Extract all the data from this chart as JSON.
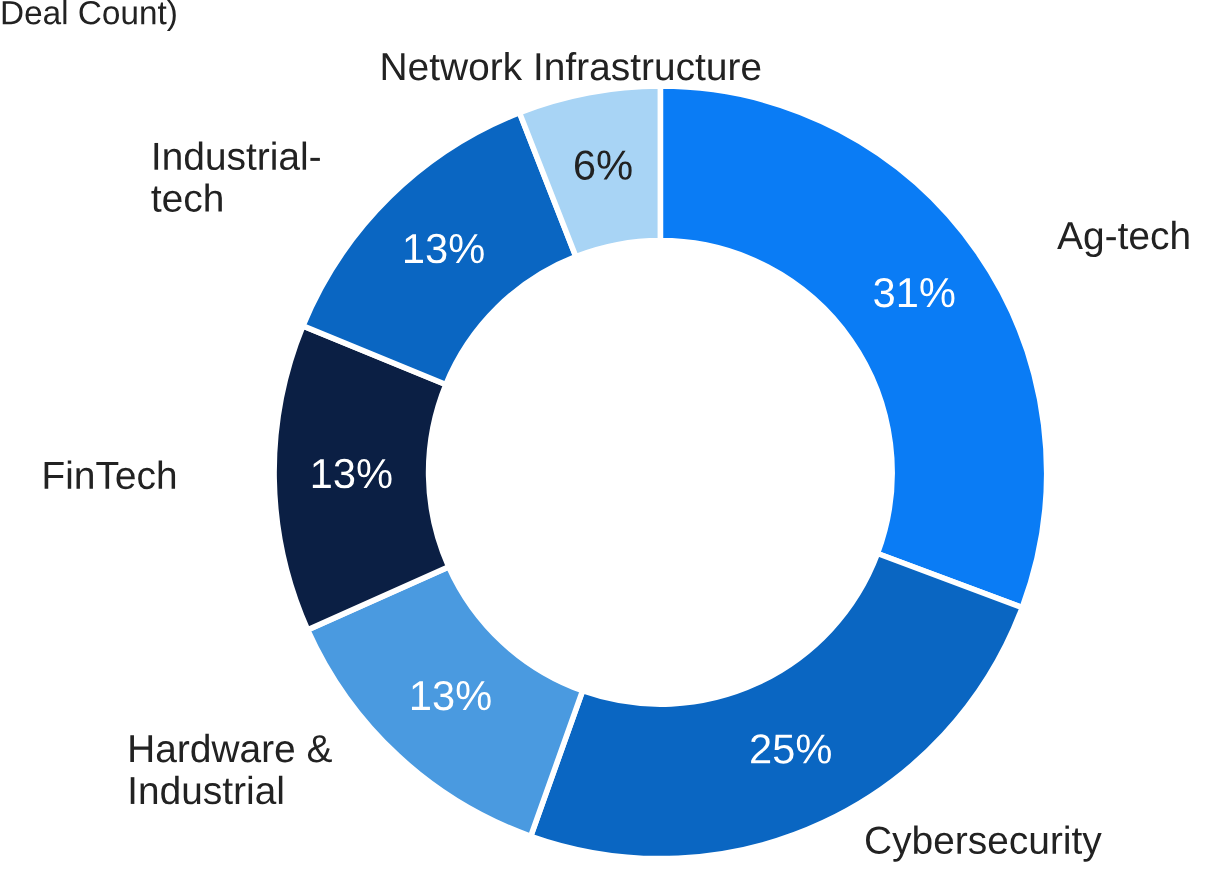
{
  "chart_data": {
    "type": "donut",
    "title": "Deal Count)",
    "categories": [
      "Ag-tech",
      "Cybersecurity",
      "Hardware &\nIndustrial",
      "FinTech",
      "Industrial-\ntech",
      "Network Infrastructure"
    ],
    "values": [
      31,
      25,
      13,
      13,
      13,
      6
    ],
    "colors": [
      "#0a7cf5",
      "#0a66c2",
      "#4a9ae0",
      "#0b1f44",
      "#0a66c2",
      "#a8d4f5"
    ],
    "value_labels": [
      "31%",
      "25%",
      "13%",
      "13%",
      "13%",
      "6%"
    ],
    "legend": false
  }
}
